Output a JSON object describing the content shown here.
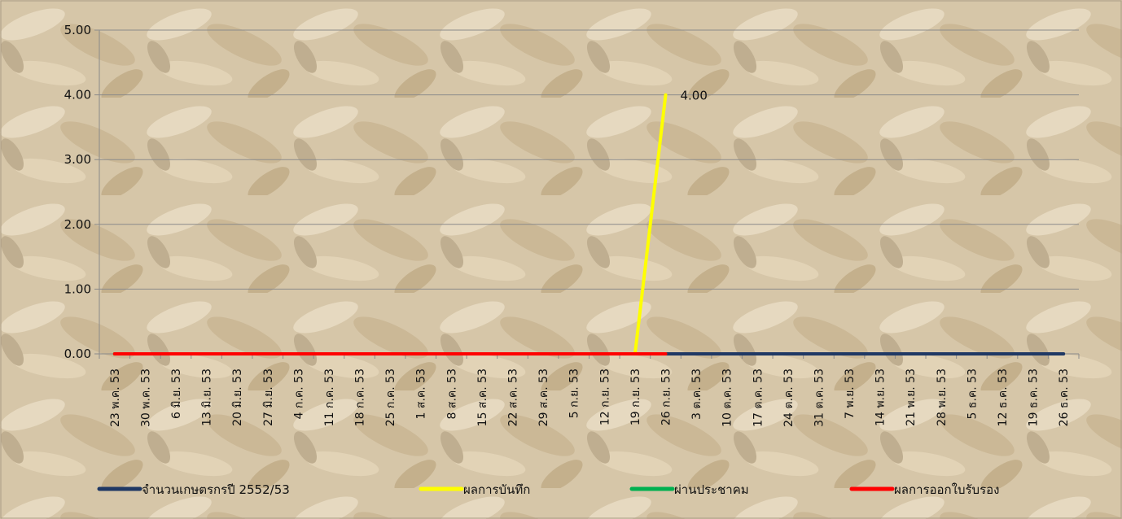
{
  "chart_data": {
    "type": "line",
    "title": "",
    "xlabel": "",
    "ylabel": "",
    "ylim": [
      0,
      5
    ],
    "yticks": [
      "0.00",
      "1.00",
      "2.00",
      "3.00",
      "4.00",
      "5.00"
    ],
    "grid": true,
    "legend_position": "bottom",
    "categories": [
      "23 พ.ค. 53",
      "30 พ.ค. 53",
      "6 มิ.ย. 53",
      "13 มิ.ย. 53",
      "20 มิ.ย. 53",
      "27 มิ.ย. 53",
      "4 ก.ค. 53",
      "11 ก.ค. 53",
      "18 ก.ค. 53",
      "25 ก.ค. 53",
      "1 ส.ค. 53",
      "8 ส.ค. 53",
      "15 ส.ค. 53",
      "22 ส.ค. 53",
      "29 ส.ค. 53",
      "5 ก.ย. 53",
      "12 ก.ย. 53",
      "19 ก.ย. 53",
      "26 ก.ย. 53",
      "3 ต.ค. 53",
      "10 ต.ค. 53",
      "17 ต.ค. 53",
      "24 ต.ค. 53",
      "31 ต.ค. 53",
      "7 พ.ย. 53",
      "14 พ.ย. 53",
      "21 พ.ย. 53",
      "28 พ.ย. 53",
      "5 ธ.ค. 53",
      "12 ธ.ค. 53",
      "19 ธ.ค. 53",
      "26 ธ.ค. 53"
    ],
    "series": [
      {
        "name": "จำนวนเกษตรกรปี  2552/53",
        "color": "#1f3864",
        "values": [
          0,
          0,
          0,
          0,
          0,
          0,
          0,
          0,
          0,
          0,
          0,
          0,
          0,
          0,
          0,
          0,
          0,
          0,
          0,
          0,
          0,
          0,
          0,
          0,
          0,
          0,
          0,
          0,
          0,
          0,
          0,
          0
        ]
      },
      {
        "name": "ผลการบันทึก",
        "color": "#ffff00",
        "values": [
          0,
          0,
          0,
          0,
          0,
          0,
          0,
          0,
          0,
          0,
          0,
          0,
          0,
          0,
          0,
          0,
          0,
          0,
          4,
          null,
          null,
          null,
          null,
          null,
          null,
          null,
          null,
          null,
          null,
          null,
          null,
          null
        ]
      },
      {
        "name": "ผ่านประชาคม",
        "color": "#00b050",
        "values": [
          0,
          0,
          0,
          0,
          0,
          0,
          0,
          0,
          0,
          0,
          0,
          0,
          0,
          0,
          0,
          0,
          0,
          0,
          0,
          null,
          null,
          null,
          null,
          null,
          null,
          null,
          null,
          null,
          null,
          null,
          null,
          null
        ]
      },
      {
        "name": "ผลการออกใบรับรอง",
        "color": "#ff0000",
        "values": [
          0,
          0,
          0,
          0,
          0,
          0,
          0,
          0,
          0,
          0,
          0,
          0,
          0,
          0,
          0,
          0,
          0,
          0,
          0,
          null,
          null,
          null,
          null,
          null,
          null,
          null,
          null,
          null,
          null,
          null,
          null,
          null
        ]
      }
    ],
    "data_labels": [
      {
        "series": 1,
        "index": 18,
        "text": "4.00"
      }
    ]
  }
}
